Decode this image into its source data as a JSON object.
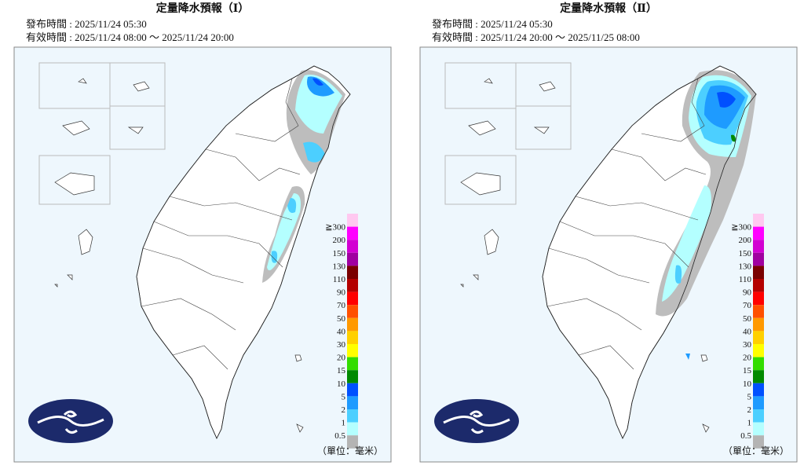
{
  "panels": [
    {
      "title": "定量降水預報（Ⅰ）",
      "issued": "發布時間 : 2025/11/24 05:30",
      "valid": "有效時間 : 2025/11/24 08:00 ～ 2025/11/24 20:00",
      "unit": "（單位：毫米）"
    },
    {
      "title": "定量降水預報（Ⅱ）",
      "issued": "發布時間 : 2025/11/24 05:30",
      "valid": "有效時間 : 2025/11/24 20:00 ～ 2025/11/25 08:00",
      "unit": "（單位：毫米）"
    }
  ],
  "legend": {
    "labels": [
      "≧300",
      "200",
      "150",
      "130",
      "110",
      "90",
      "70",
      "50",
      "40",
      "30",
      "20",
      "15",
      "10",
      "5",
      "2",
      "1",
      "0.5"
    ],
    "colors": [
      "#ffc8f0",
      "#ff00ff",
      "#d200d2",
      "#a000a0",
      "#7a0000",
      "#b40000",
      "#ff0000",
      "#ff5000",
      "#ff9900",
      "#ffd000",
      "#ffff00",
      "#33dd00",
      "#008a00",
      "#0050ff",
      "#1e9bff",
      "#4ccfff",
      "#b4ffff",
      "#b4b4b4"
    ]
  }
}
